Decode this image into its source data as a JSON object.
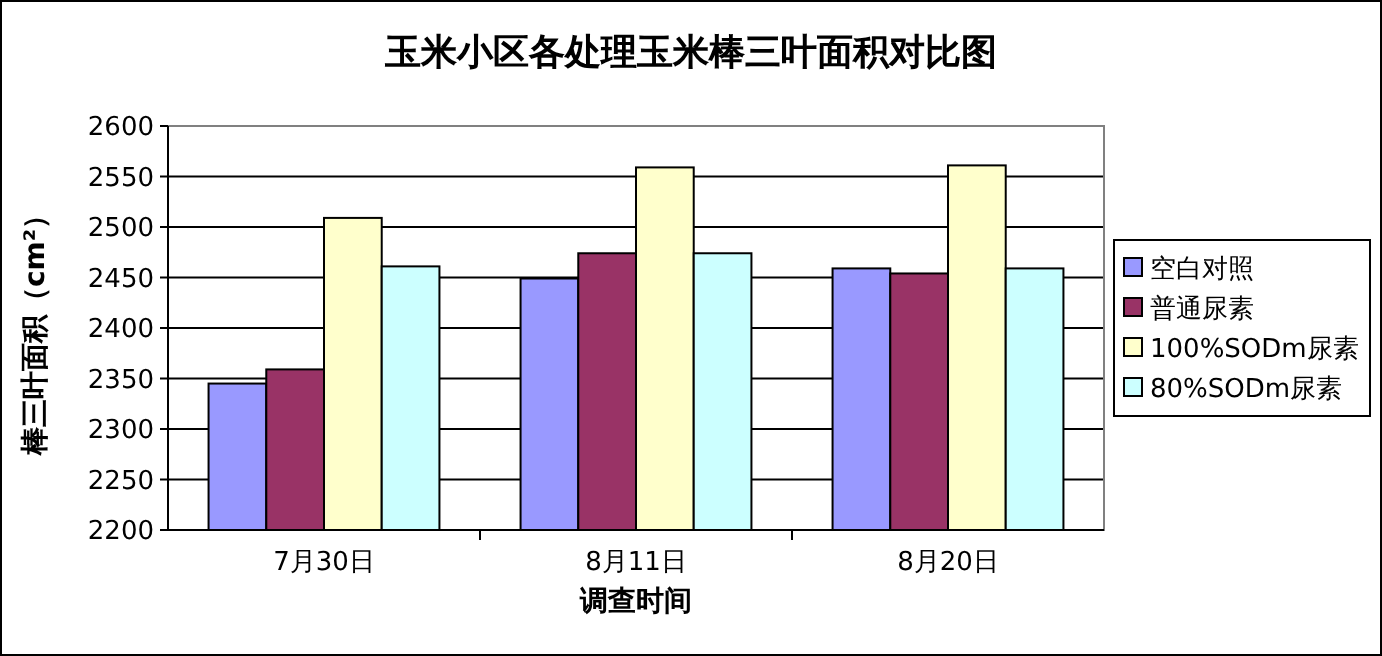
{
  "chart_data": {
    "type": "bar",
    "title": "玉米小区各处理玉米棒三叶面积对比图",
    "xlabel": "调查时间",
    "ylabel": "棒三叶面积（cm²）",
    "categories": [
      "7月30日",
      "8月11日",
      "8月20日"
    ],
    "series": [
      {
        "name": "空白对照",
        "color": "#9999ff",
        "values": [
          2345,
          2449,
          2459
        ]
      },
      {
        "name": "普通尿素",
        "color": "#993366",
        "values": [
          2359,
          2474,
          2454
        ]
      },
      {
        "name": "100%SODm尿素",
        "color": "#ffffcc",
        "values": [
          2509,
          2559,
          2561
        ]
      },
      {
        "name": "80%SODm尿素",
        "color": "#ccffff",
        "values": [
          2461,
          2474,
          2459
        ]
      }
    ],
    "ylim": [
      2200,
      2600
    ],
    "yticks": [
      2200,
      2250,
      2300,
      2350,
      2400,
      2450,
      2500,
      2550,
      2600
    ],
    "grid": "y",
    "legend": "right"
  }
}
